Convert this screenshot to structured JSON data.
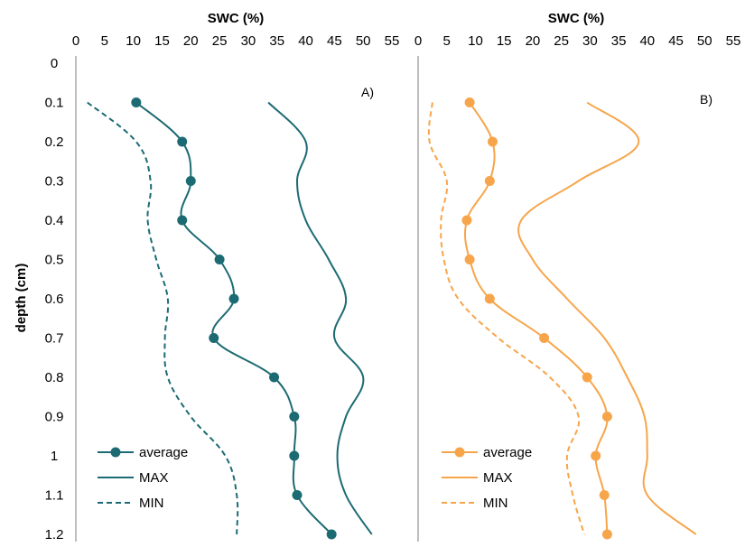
{
  "chart_data": {
    "type": "line",
    "ylabel": "depth (cm)",
    "depth_ticks": [
      "0",
      "0.1",
      "0.2",
      "0.3",
      "0.4",
      "0.5",
      "0.6",
      "0.7",
      "0.8",
      "0.9",
      "1",
      "1.1",
      "1.2"
    ],
    "ylim": [
      0,
      1.2
    ],
    "grid": false,
    "panels": [
      {
        "panel_label": "A)",
        "xlabel": "SWC (%)",
        "xlim": [
          0,
          55
        ],
        "x_ticks": [
          "0",
          "5",
          "10",
          "15",
          "20",
          "25",
          "30",
          "35",
          "40",
          "45",
          "50",
          "55"
        ],
        "color": "#1c6b73",
        "legend_placement": "bottom-left",
        "series": [
          {
            "name": "average",
            "style": "solid-markers",
            "points": [
              [
                10.5,
                0.1
              ],
              [
                18.5,
                0.2
              ],
              [
                20,
                0.3
              ],
              [
                18.5,
                0.4
              ],
              [
                25,
                0.5
              ],
              [
                27.5,
                0.6
              ],
              [
                24,
                0.7
              ],
              [
                34.5,
                0.8
              ],
              [
                38,
                0.9
              ],
              [
                38,
                1.0
              ],
              [
                38.5,
                1.1
              ],
              [
                44.5,
                1.2
              ]
            ]
          },
          {
            "name": "MAX",
            "style": "solid",
            "points": [
              [
                33.5,
                0.1
              ],
              [
                40,
                0.2
              ],
              [
                38.5,
                0.3
              ],
              [
                40,
                0.4
              ],
              [
                44,
                0.5
              ],
              [
                47,
                0.6
              ],
              [
                45,
                0.7
              ],
              [
                50,
                0.8
              ],
              [
                47,
                0.9
              ],
              [
                45.5,
                1.0
              ],
              [
                47,
                1.1
              ],
              [
                51.5,
                1.2
              ]
            ]
          },
          {
            "name": "MIN",
            "style": "dashed",
            "points": [
              [
                2,
                0.1
              ],
              [
                10.5,
                0.2
              ],
              [
                13,
                0.3
              ],
              [
                12.5,
                0.4
              ],
              [
                14,
                0.5
              ],
              [
                16,
                0.6
              ],
              [
                15.5,
                0.7
              ],
              [
                16,
                0.8
              ],
              [
                20,
                0.9
              ],
              [
                26,
                1.0
              ],
              [
                28,
                1.1
              ],
              [
                28,
                1.2
              ]
            ]
          }
        ]
      },
      {
        "panel_label": "B)",
        "xlabel": "SWC (%)",
        "xlim": [
          0,
          55
        ],
        "x_ticks": [
          "0",
          "5",
          "10",
          "15",
          "20",
          "25",
          "30",
          "35",
          "40",
          "45",
          "50",
          "55"
        ],
        "color": "#f7a54a",
        "legend_placement": "bottom-left",
        "series": [
          {
            "name": "average",
            "style": "solid-markers",
            "points": [
              [
                9,
                0.1
              ],
              [
                13,
                0.2
              ],
              [
                12.5,
                0.3
              ],
              [
                8.5,
                0.4
              ],
              [
                9,
                0.5
              ],
              [
                12.5,
                0.6
              ],
              [
                22,
                0.7
              ],
              [
                29.5,
                0.8
              ],
              [
                33,
                0.9
              ],
              [
                31,
                1.0
              ],
              [
                32.5,
                1.1
              ],
              [
                33,
                1.2
              ]
            ]
          },
          {
            "name": "MAX",
            "style": "solid",
            "points": [
              [
                29.5,
                0.1
              ],
              [
                38.5,
                0.2
              ],
              [
                28,
                0.3
              ],
              [
                18,
                0.4
              ],
              [
                20,
                0.5
              ],
              [
                26,
                0.6
              ],
              [
                32.5,
                0.7
              ],
              [
                36.5,
                0.8
              ],
              [
                39.5,
                0.9
              ],
              [
                40,
                1.0
              ],
              [
                40,
                1.1
              ],
              [
                48.5,
                1.2
              ]
            ]
          },
          {
            "name": "MIN",
            "style": "dashed",
            "points": [
              [
                2.5,
                0.1
              ],
              [
                2,
                0.2
              ],
              [
                5,
                0.3
              ],
              [
                4,
                0.4
              ],
              [
                4.5,
                0.5
              ],
              [
                7,
                0.6
              ],
              [
                14,
                0.7
              ],
              [
                23,
                0.8
              ],
              [
                28,
                0.9
              ],
              [
                26,
                1.0
              ],
              [
                27,
                1.1
              ],
              [
                29,
                1.2
              ]
            ]
          }
        ]
      }
    ]
  }
}
